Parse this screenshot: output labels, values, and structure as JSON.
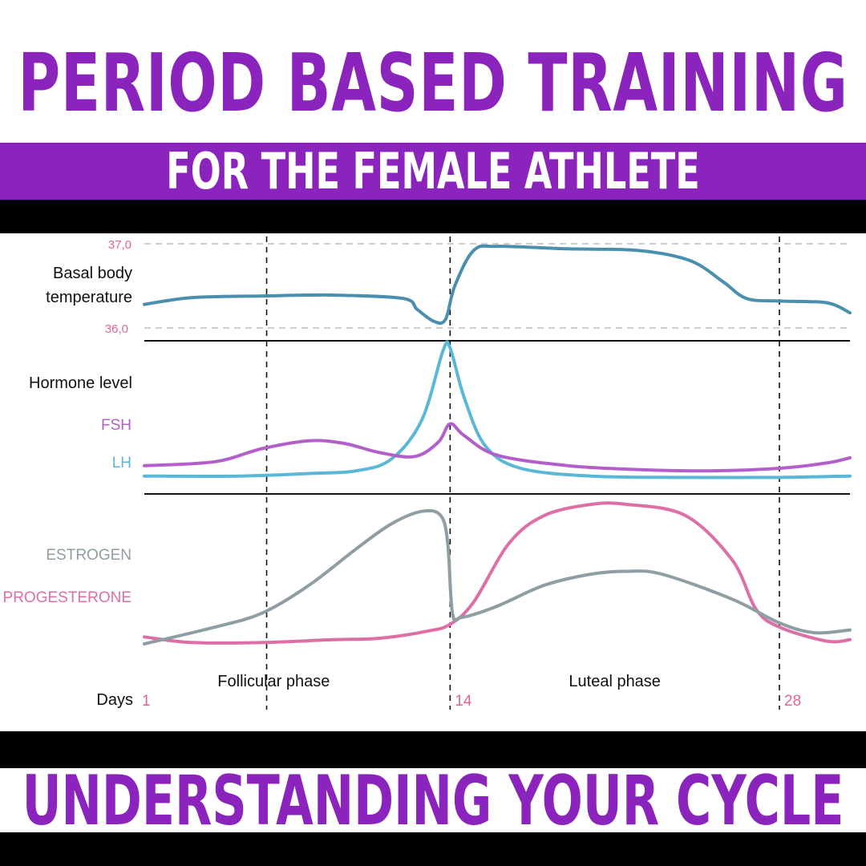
{
  "header": {
    "title": "PERIOD BASED TRAINING",
    "subtitle": "FOR THE FEMALE ATHLETE"
  },
  "footer": {
    "title": "UNDERSTANDING YOUR CYCLE"
  },
  "colors": {
    "purple": "#8a24bd",
    "bbt": "#4a8fae",
    "fsh": "#b35fc9",
    "lh": "#5ab8d6",
    "estrogen": "#8f9ea3",
    "progesterone": "#dd6fa6",
    "pink_label": "#e0668f"
  },
  "chart_data": {
    "type": "line",
    "x_range": [
      1,
      30
    ],
    "day_ticks": [
      {
        "label": "1",
        "day": 1
      },
      {
        "label": "14",
        "day": 14
      },
      {
        "label": "28",
        "day": 28
      }
    ],
    "days_label": "Days",
    "phase_lines_days": [
      6.2,
      14,
      28
    ],
    "phases": [
      {
        "label": "Follicular phase",
        "center_day": 6.5
      },
      {
        "label": "Luteal phase",
        "center_day": 21
      }
    ],
    "panels": [
      {
        "id": "temperature",
        "label_lines": [
          "Basal body",
          "temperature"
        ],
        "y_ticks": [
          {
            "label": "37,0",
            "value": 37.0
          },
          {
            "label": "36,0",
            "value": 36.0
          }
        ],
        "series": [
          {
            "name": "Basal body temperature",
            "points": [
              [
                1,
                36.28
              ],
              [
                3,
                36.36
              ],
              [
                6,
                36.38
              ],
              [
                9,
                36.39
              ],
              [
                12,
                36.35
              ],
              [
                12.6,
                36.22
              ],
              [
                13.3,
                36.08
              ],
              [
                13.8,
                36.1
              ],
              [
                14.2,
                36.5
              ],
              [
                15,
                36.92
              ],
              [
                16,
                36.97
              ],
              [
                19,
                36.94
              ],
              [
                22,
                36.92
              ],
              [
                24.2,
                36.8
              ],
              [
                25.6,
                36.55
              ],
              [
                26.6,
                36.35
              ],
              [
                28,
                36.32
              ],
              [
                30,
                36.3
              ],
              [
                31,
                36.18
              ]
            ]
          }
        ]
      },
      {
        "id": "gonadotropins",
        "label": "Hormone level",
        "series": [
          {
            "name": "FSH",
            "points": [
              [
                1,
                0.1
              ],
              [
                4,
                0.13
              ],
              [
                6,
                0.23
              ],
              [
                8,
                0.29
              ],
              [
                9.5,
                0.27
              ],
              [
                11,
                0.2
              ],
              [
                12.5,
                0.17
              ],
              [
                13.5,
                0.28
              ],
              [
                14,
                0.42
              ],
              [
                14.6,
                0.33
              ],
              [
                16,
                0.18
              ],
              [
                19,
                0.1
              ],
              [
                22,
                0.07
              ],
              [
                25,
                0.06
              ],
              [
                28,
                0.08
              ],
              [
                30,
                0.12
              ],
              [
                31,
                0.16
              ]
            ]
          },
          {
            "name": "LH",
            "points": [
              [
                1,
                0.02
              ],
              [
                5,
                0.02
              ],
              [
                8,
                0.04
              ],
              [
                10,
                0.06
              ],
              [
                11.5,
                0.15
              ],
              [
                12.8,
                0.45
              ],
              [
                13.7,
                0.98
              ],
              [
                14,
                1.0
              ],
              [
                14.6,
                0.62
              ],
              [
                15.5,
                0.25
              ],
              [
                17,
                0.08
              ],
              [
                20,
                0.02
              ],
              [
                24,
                0.01
              ],
              [
                28,
                0.01
              ],
              [
                31,
                0.02
              ]
            ]
          }
        ]
      },
      {
        "id": "ovarian",
        "series": [
          {
            "name": "ESTROGEN",
            "points": [
              [
                1,
                0.0
              ],
              [
                4,
                0.12
              ],
              [
                6,
                0.22
              ],
              [
                8,
                0.42
              ],
              [
                10,
                0.68
              ],
              [
                11.5,
                0.86
              ],
              [
                12.8,
                0.95
              ],
              [
                13.6,
                0.92
              ],
              [
                13.9,
                0.72
              ],
              [
                14.1,
                0.22
              ],
              [
                14.5,
                0.19
              ],
              [
                16,
                0.27
              ],
              [
                18,
                0.42
              ],
              [
                20,
                0.5
              ],
              [
                21.5,
                0.52
              ],
              [
                23,
                0.5
              ],
              [
                26,
                0.32
              ],
              [
                28,
                0.15
              ],
              [
                29.5,
                0.08
              ],
              [
                31,
                0.1
              ]
            ]
          },
          {
            "name": "PROGESTERONE",
            "points": [
              [
                1,
                0.05
              ],
              [
                3,
                0.01
              ],
              [
                6,
                0.01
              ],
              [
                9,
                0.03
              ],
              [
                11,
                0.04
              ],
              [
                13,
                0.09
              ],
              [
                14,
                0.14
              ],
              [
                15,
                0.3
              ],
              [
                16.5,
                0.72
              ],
              [
                18,
                0.92
              ],
              [
                20,
                1.0
              ],
              [
                21.5,
                1.0
              ],
              [
                24,
                0.92
              ],
              [
                26,
                0.6
              ],
              [
                27,
                0.25
              ],
              [
                28,
                0.12
              ],
              [
                30,
                0.02
              ],
              [
                31,
                0.03
              ]
            ]
          }
        ]
      }
    ]
  }
}
